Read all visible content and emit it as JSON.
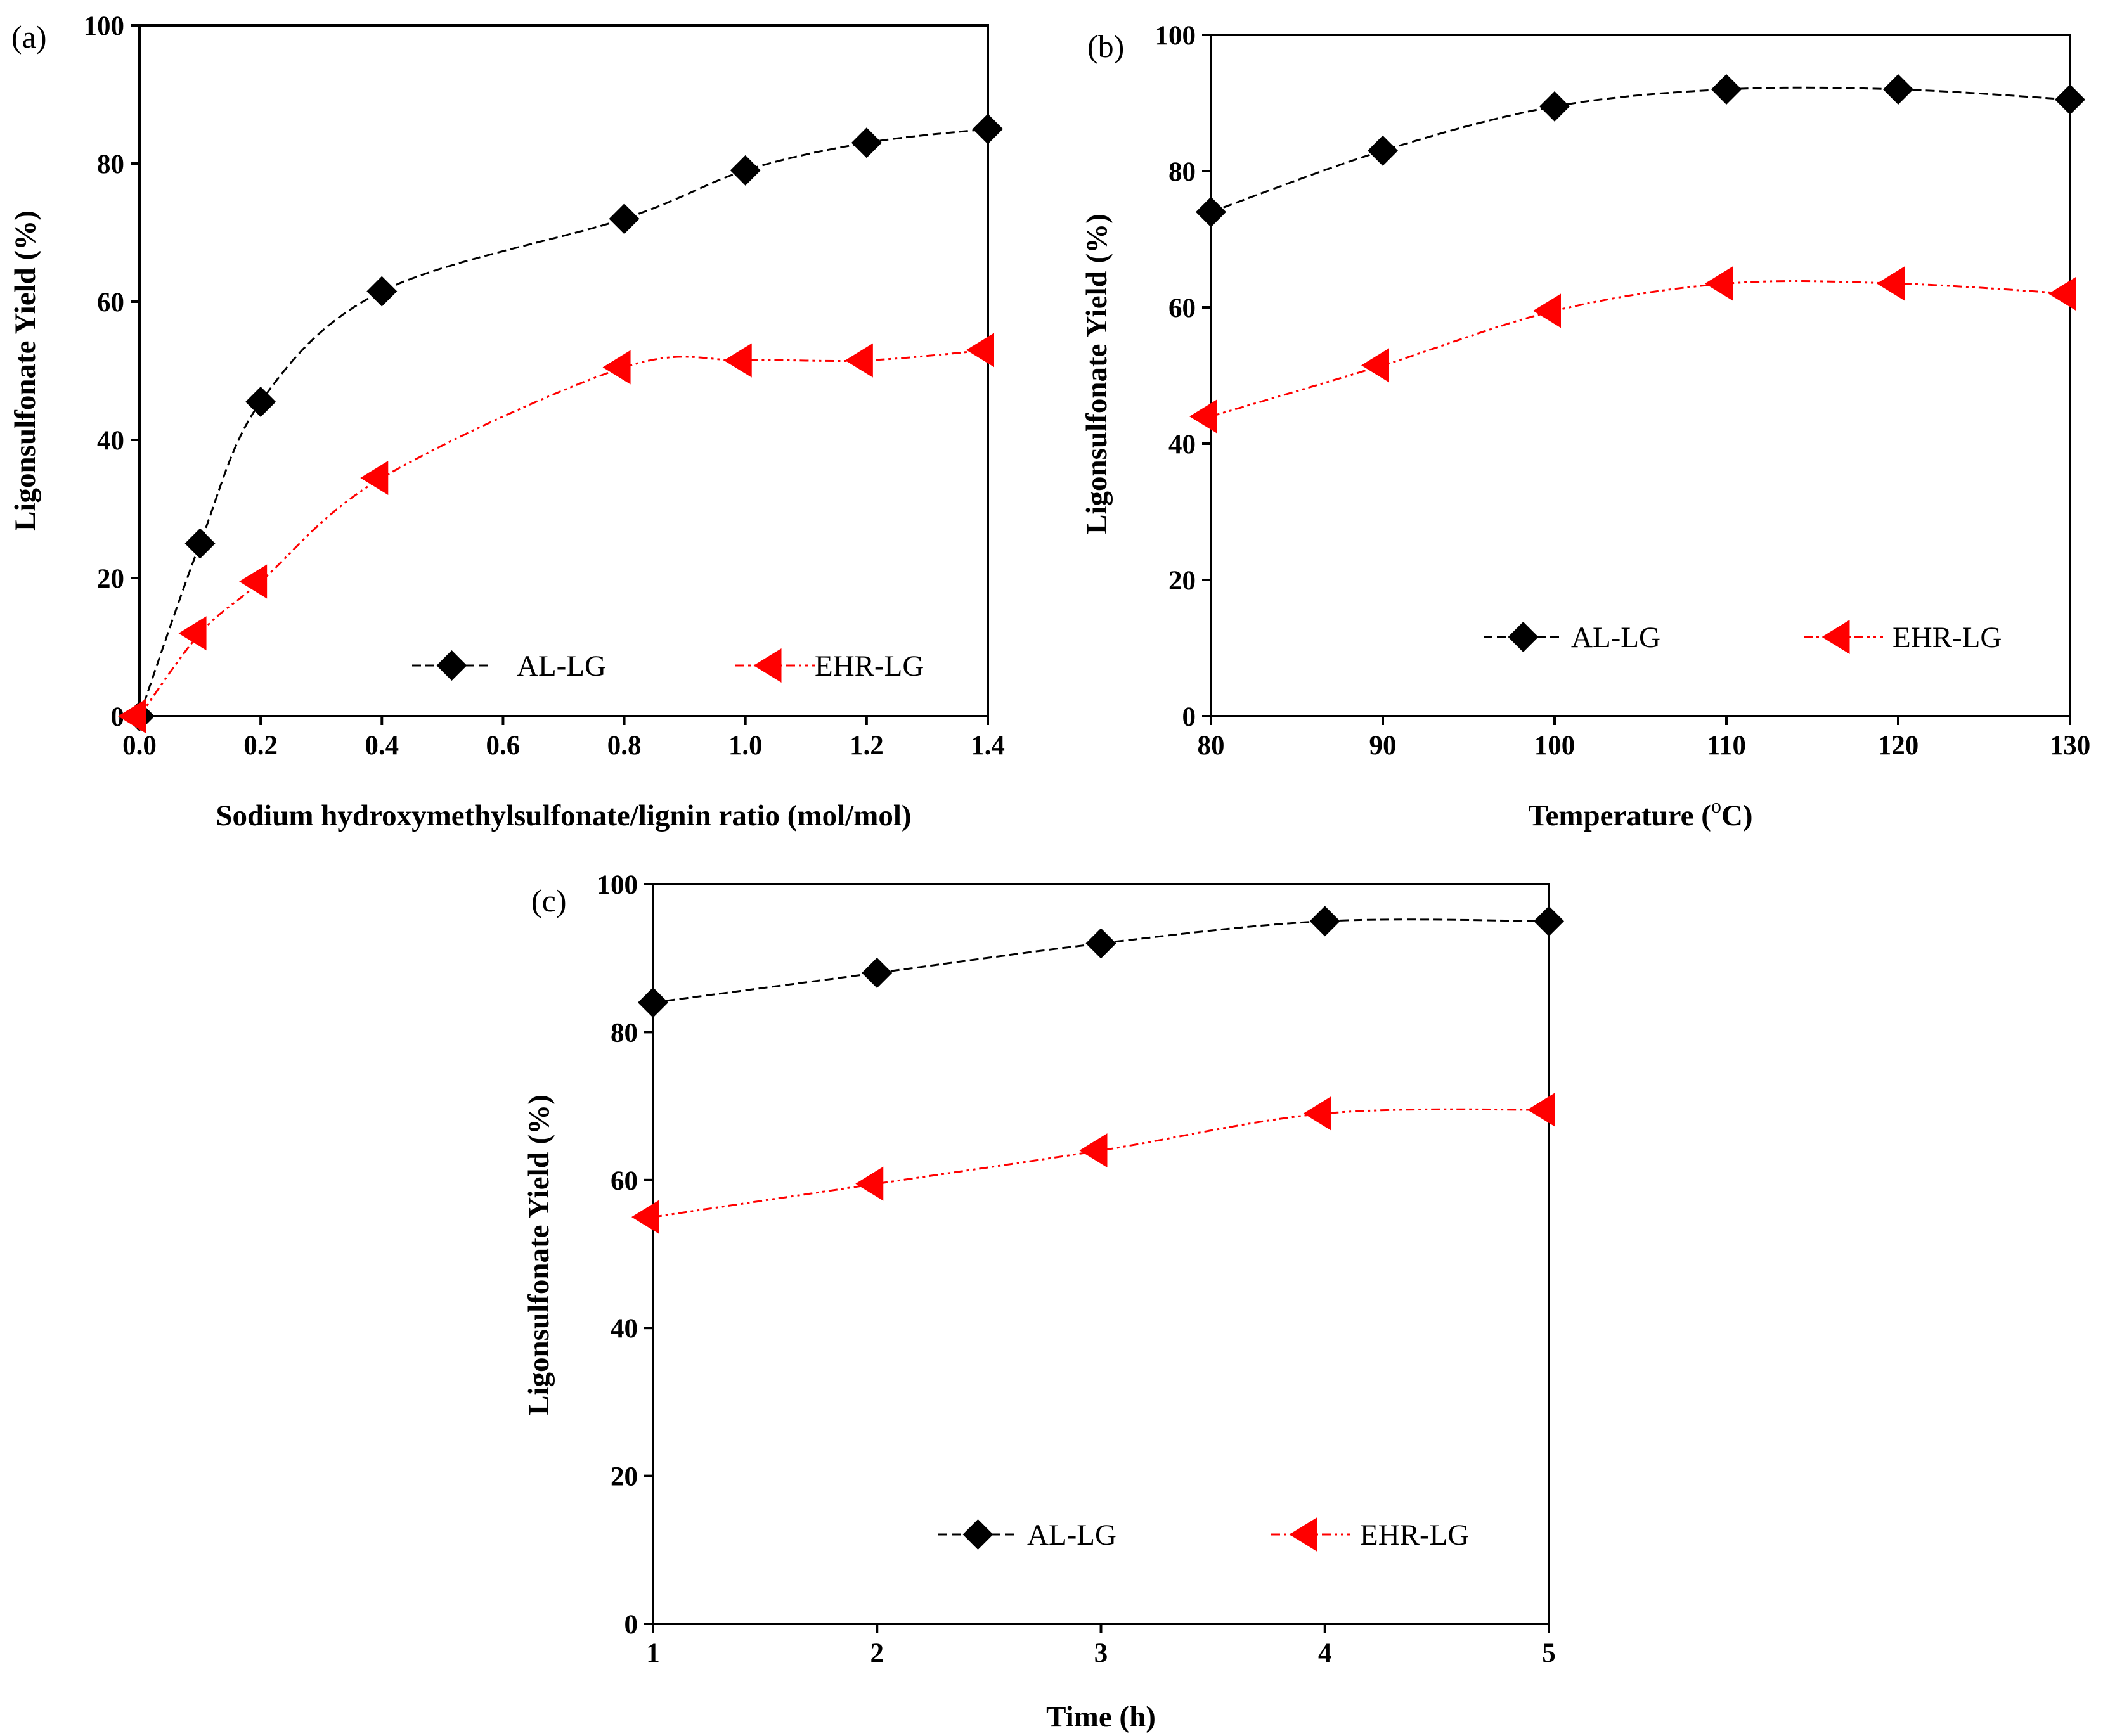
{
  "figure": {
    "colors": {
      "al_lg": "#000000",
      "ehr_lg": "#ff0000",
      "axis": "#000000"
    }
  },
  "chart_data": [
    {
      "type": "line",
      "panel_label": "(a)",
      "title": "",
      "xlabel": "Sodium hydroxymethylsulfonate/lignin ratio (mol/mol)",
      "ylabel": "Ligonsulfonate Yield (%)",
      "xlim": [
        0,
        1.4
      ],
      "ylim": [
        0,
        100
      ],
      "xticks": [
        0.0,
        0.2,
        0.4,
        0.6,
        0.8,
        1.0,
        1.2,
        1.4
      ],
      "xtick_labels": [
        "0.0",
        "0.2",
        "0.4",
        "0.6",
        "0.8",
        "1.0",
        "1.2",
        "1.4"
      ],
      "yticks": [
        0,
        20,
        40,
        60,
        80,
        100
      ],
      "ytick_labels": [
        "0",
        "20",
        "40",
        "60",
        "80",
        "100"
      ],
      "grid": false,
      "legend_position": "bottom",
      "series": [
        {
          "name": "AL-LG",
          "marker": "diamond",
          "color": "#000000",
          "x": [
            0.0,
            0.1,
            0.2,
            0.4,
            0.8,
            1.0,
            1.2,
            1.4
          ],
          "values": [
            0,
            25,
            45.5,
            61.5,
            72,
            79,
            83,
            85
          ]
        },
        {
          "name": "EHR-LG",
          "marker": "triangle-left",
          "color": "#ff0000",
          "x": [
            0.0,
            0.1,
            0.2,
            0.4,
            0.8,
            1.0,
            1.2,
            1.4
          ],
          "values": [
            0,
            12,
            19.5,
            34.5,
            50.5,
            51.5,
            51.5,
            53
          ]
        }
      ]
    },
    {
      "type": "line",
      "panel_label": "(b)",
      "title": "",
      "xlabel": "Temperature (",
      "xlabel_superscript": "o",
      "xlabel_suffix": "C)",
      "ylabel": "Ligonsulfonate Yield (%)",
      "xlim": [
        80,
        130
      ],
      "ylim": [
        0,
        100
      ],
      "xticks": [
        80,
        90,
        100,
        110,
        120,
        130
      ],
      "xtick_labels": [
        "80",
        "90",
        "100",
        "110",
        "120",
        "130"
      ],
      "yticks": [
        0,
        20,
        40,
        60,
        80,
        100
      ],
      "ytick_labels": [
        "0",
        "20",
        "40",
        "60",
        "80",
        "100"
      ],
      "grid": false,
      "legend_position": "bottom",
      "series": [
        {
          "name": "AL-LG",
          "marker": "diamond",
          "color": "#000000",
          "x": [
            80,
            90,
            100,
            110,
            120,
            130
          ],
          "values": [
            74,
            83,
            89.5,
            92,
            92,
            90.5
          ]
        },
        {
          "name": "EHR-LG",
          "marker": "triangle-left",
          "color": "#ff0000",
          "x": [
            80,
            90,
            100,
            110,
            120,
            130
          ],
          "values": [
            44,
            51.5,
            59.5,
            63.5,
            63.5,
            62
          ]
        }
      ]
    },
    {
      "type": "line",
      "panel_label": "(c)",
      "title": "",
      "xlabel": "Time (h)",
      "ylabel": "Ligonsulfonate Yield (%)",
      "xlim": [
        1,
        5
      ],
      "ylim": [
        0,
        100
      ],
      "xticks": [
        1,
        2,
        3,
        4,
        5
      ],
      "xtick_labels": [
        "1",
        "2",
        "3",
        "4",
        "5"
      ],
      "yticks": [
        0,
        20,
        40,
        60,
        80,
        100
      ],
      "ytick_labels": [
        "0",
        "20",
        "40",
        "60",
        "80",
        "100"
      ],
      "grid": false,
      "legend_position": "bottom",
      "series": [
        {
          "name": "AL-LG",
          "marker": "diamond",
          "color": "#000000",
          "x": [
            1,
            2,
            3,
            4,
            5
          ],
          "values": [
            84,
            88,
            92,
            95,
            95
          ]
        },
        {
          "name": "EHR-LG",
          "marker": "triangle-left",
          "color": "#ff0000",
          "x": [
            1,
            2,
            3,
            4,
            5
          ],
          "values": [
            55,
            59.5,
            64,
            69,
            69.5
          ]
        }
      ]
    }
  ]
}
